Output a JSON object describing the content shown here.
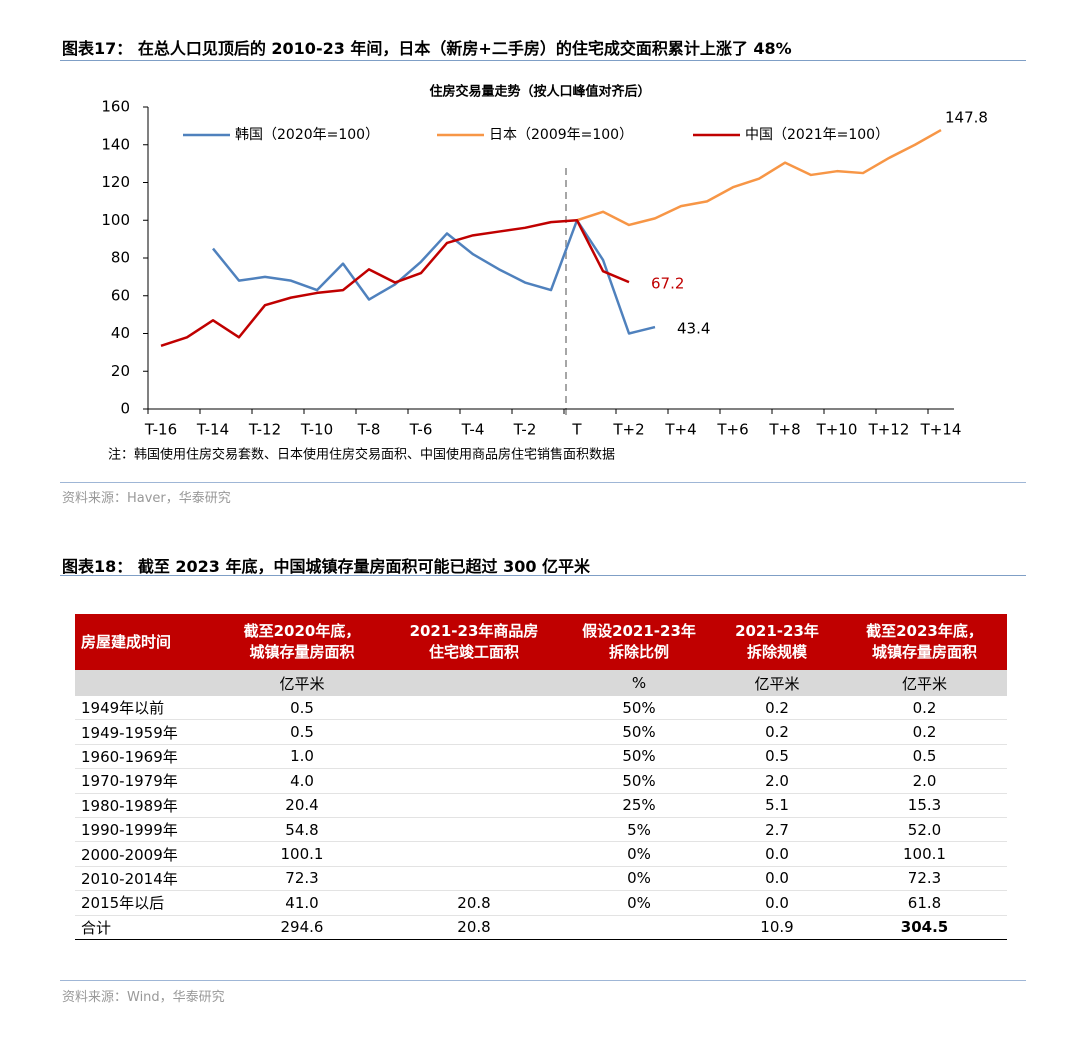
{
  "fig17": {
    "title": "图表17： 在总人口见顶后的 2010-23 年间，日本（新房+二手房）的住宅成交面积累计上涨了 48%"
  },
  "chart_data": {
    "type": "line",
    "title": "住房交易量走势（按人口峰值对齐后）",
    "categories": [
      "T-16",
      null,
      "T-14",
      null,
      "T-12",
      null,
      "T-10",
      null,
      "T-8",
      null,
      "T-6",
      null,
      "T-4",
      null,
      "T-2",
      null,
      "T",
      null,
      "T+2",
      null,
      "T+4",
      null,
      "T+6",
      null,
      "T+8",
      null,
      "T+10",
      null,
      "T+12",
      null,
      "T+14"
    ],
    "series": [
      {
        "name": "韩国（2020年=100）",
        "color": "#4f81bd",
        "values": [
          null,
          null,
          85,
          68,
          70,
          68,
          63,
          77,
          58,
          66,
          78,
          93,
          82,
          74,
          67,
          63,
          100,
          79,
          40,
          43.4,
          null,
          null,
          null,
          null,
          null,
          null,
          null,
          null,
          null,
          null,
          null
        ]
      },
      {
        "name": "日本（2009年=100）",
        "color": "#f79646",
        "values": [
          null,
          null,
          null,
          null,
          null,
          null,
          null,
          null,
          null,
          null,
          null,
          null,
          null,
          null,
          null,
          null,
          100,
          104.5,
          97.5,
          101,
          107.5,
          110,
          117.5,
          122,
          130.5,
          124,
          126,
          125,
          133,
          140,
          147.8
        ]
      },
      {
        "name": "中国（2021年=100）",
        "color": "#c00000",
        "values": [
          33.5,
          38,
          47,
          38,
          55,
          59,
          61.5,
          63,
          74,
          67,
          72,
          88,
          92,
          94,
          96,
          99,
          100,
          73,
          67.2,
          null,
          null,
          null,
          null,
          null,
          null,
          null,
          null,
          null,
          null,
          null,
          null
        ]
      }
    ],
    "ylim": [
      0,
      160
    ],
    "yticks": [
      0,
      20,
      40,
      60,
      80,
      100,
      120,
      140,
      160
    ],
    "grid": false,
    "legend": "top"
  },
  "note": "注：韩国使用住房交易套数、日本使用住房交易面积、中国使用商品房住宅销售面积数据",
  "source1": "资料来源：Haver，华泰研究",
  "fig18": {
    "title": "图表18： 截至 2023 年底，中国城镇存量房面积可能已超过 300 亿平米"
  },
  "table": {
    "header": [
      [
        "房屋建成时间"
      ],
      [
        "截至2020年底，",
        "城镇存量房面积"
      ],
      [
        "2021-23年商品房",
        "住宅竣工面积"
      ],
      [
        "假设2021-23年",
        "拆除比例"
      ],
      [
        "2021-23年",
        "拆除规模"
      ],
      [
        "截至2023年底，",
        "城镇存量房面积"
      ]
    ],
    "units": [
      null,
      "亿平米",
      null,
      "%",
      "亿平米",
      "亿平米"
    ],
    "rows": [
      [
        "1949年以前",
        "0.5",
        null,
        "50%",
        "0.2",
        "0.2"
      ],
      [
        "1949-1959年",
        "0.5",
        null,
        "50%",
        "0.2",
        "0.2"
      ],
      [
        "1960-1969年",
        "1.0",
        null,
        "50%",
        "0.5",
        "0.5"
      ],
      [
        "1970-1979年",
        "4.0",
        null,
        "50%",
        "2.0",
        "2.0"
      ],
      [
        "1980-1989年",
        "20.4",
        null,
        "25%",
        "5.1",
        "15.3"
      ],
      [
        "1990-1999年",
        "54.8",
        null,
        "5%",
        "2.7",
        "52.0"
      ],
      [
        "2000-2009年",
        "100.1",
        null,
        "0%",
        "0.0",
        "100.1"
      ],
      [
        "2010-2014年",
        "72.3",
        null,
        "0%",
        "0.0",
        "72.3"
      ],
      [
        "2015年以后",
        "41.0",
        "20.8",
        "0%",
        "0.0",
        "61.8"
      ],
      [
        "合计",
        "294.6",
        "20.8",
        null,
        "10.9",
        "304.5"
      ]
    ]
  },
  "source2": "资料来源：Wind，华泰研究"
}
